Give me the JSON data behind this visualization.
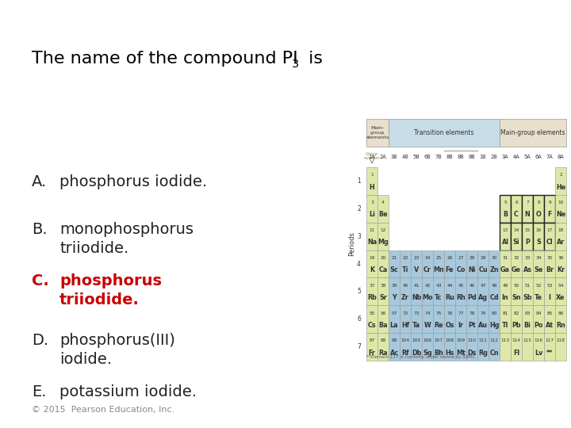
{
  "background_color": "#ffffff",
  "title_color": "#000000",
  "title_fontsize": 16,
  "options": [
    {
      "label": "A.",
      "text": "phosphorus iodide.",
      "color": "#222222",
      "bold": false
    },
    {
      "label": "B.",
      "text": "monophosphorus\ntriiodide.",
      "color": "#222222",
      "bold": false
    },
    {
      "label": "C.",
      "text": "phosphorus\ntriiodide.",
      "color": "#cc0000",
      "bold": true
    },
    {
      "label": "D.",
      "text": "phosphorus(III)\niodide.",
      "color": "#222222",
      "bold": false
    },
    {
      "label": "E.",
      "text": "potassium iodide.",
      "color": "#222222",
      "bold": false
    }
  ],
  "copyright_text": "© 2015  Pearson Education, Inc.",
  "copyright_fontsize": 8,
  "copyright_color": "#888888",
  "main_group_color": "#dde8a8",
  "transition_color": "#a8c8dc",
  "header_mg_color": "#e8e0cc",
  "header_tr_color": "#c8dce8",
  "border_color": "#999999",
  "bold_border_color": "#222222",
  "text_color": "#333333",
  "group_label_color": "#888844",
  "footnote_color": "#555555"
}
